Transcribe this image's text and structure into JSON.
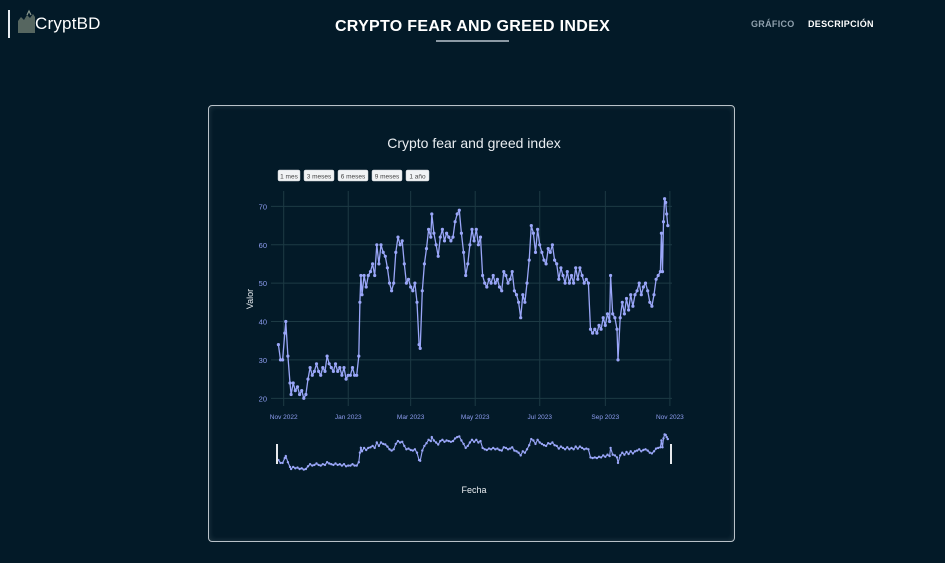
{
  "header": {
    "logo_text": "CryptBD",
    "logo_icon": "bull-bear-icon",
    "title": "CRYPTO FEAR AND GREED INDEX",
    "nav": [
      {
        "label": "GRÁFICO",
        "active": true
      },
      {
        "label": "DESCRIPCIÓN",
        "active": false
      }
    ]
  },
  "chart_data": {
    "type": "line",
    "title": "Crypto fear and greed index",
    "xlabel": "Fecha",
    "ylabel": "Valor",
    "range_buttons": [
      "1 mes",
      "3 meses",
      "6 meses",
      "9 meses",
      "1 año"
    ],
    "x_ticks": [
      "Nov 2022",
      "Jan 2023",
      "Mar 2023",
      "May 2023",
      "Jul 2023",
      "Sep 2023",
      "Nov 2023"
    ],
    "y_ticks": [
      20,
      30,
      40,
      50,
      60,
      70
    ],
    "ylim": [
      18,
      74
    ],
    "xlim": [
      "2022-10-20",
      "2023-11-03"
    ],
    "grid": true,
    "series_color": "#9aa6f8",
    "series": [
      {
        "points": [
          [
            "2022-10-27",
            34
          ],
          [
            "2022-10-29",
            30
          ],
          [
            "2022-10-31",
            30
          ],
          [
            "2022-11-02",
            37
          ],
          [
            "2022-11-03",
            40
          ],
          [
            "2022-11-05",
            31
          ],
          [
            "2022-11-07",
            24
          ],
          [
            "2022-11-08",
            21
          ],
          [
            "2022-11-10",
            24
          ],
          [
            "2022-11-12",
            22
          ],
          [
            "2022-11-14",
            23
          ],
          [
            "2022-11-16",
            21
          ],
          [
            "2022-11-18",
            22
          ],
          [
            "2022-11-20",
            20
          ],
          [
            "2022-11-22",
            21
          ],
          [
            "2022-11-24",
            25
          ],
          [
            "2022-11-26",
            28
          ],
          [
            "2022-11-28",
            26
          ],
          [
            "2022-11-30",
            27
          ],
          [
            "2022-12-02",
            29
          ],
          [
            "2022-12-04",
            27
          ],
          [
            "2022-12-06",
            26
          ],
          [
            "2022-12-08",
            28
          ],
          [
            "2022-12-10",
            27
          ],
          [
            "2022-12-12",
            31
          ],
          [
            "2022-12-14",
            29
          ],
          [
            "2022-12-16",
            28
          ],
          [
            "2022-12-18",
            27
          ],
          [
            "2022-12-20",
            29
          ],
          [
            "2022-12-22",
            27
          ],
          [
            "2022-12-24",
            28
          ],
          [
            "2022-12-26",
            26
          ],
          [
            "2022-12-28",
            28
          ],
          [
            "2022-12-30",
            25
          ],
          [
            "2023-01-01",
            26
          ],
          [
            "2023-01-03",
            26
          ],
          [
            "2023-01-05",
            28
          ],
          [
            "2023-01-07",
            26
          ],
          [
            "2023-01-09",
            26
          ],
          [
            "2023-01-11",
            31
          ],
          [
            "2023-01-12",
            45
          ],
          [
            "2023-01-13",
            52
          ],
          [
            "2023-01-14",
            47
          ],
          [
            "2023-01-16",
            52
          ],
          [
            "2023-01-18",
            49
          ],
          [
            "2023-01-20",
            52
          ],
          [
            "2023-01-22",
            53
          ],
          [
            "2023-01-24",
            55
          ],
          [
            "2023-01-26",
            52
          ],
          [
            "2023-01-28",
            60
          ],
          [
            "2023-01-30",
            55
          ],
          [
            "2023-02-01",
            60
          ],
          [
            "2023-02-03",
            58
          ],
          [
            "2023-02-05",
            57
          ],
          [
            "2023-02-07",
            54
          ],
          [
            "2023-02-09",
            50
          ],
          [
            "2023-02-11",
            48
          ],
          [
            "2023-02-13",
            50
          ],
          [
            "2023-02-15",
            58
          ],
          [
            "2023-02-17",
            62
          ],
          [
            "2023-02-19",
            60
          ],
          [
            "2023-02-21",
            61
          ],
          [
            "2023-02-23",
            55
          ],
          [
            "2023-02-25",
            50
          ],
          [
            "2023-02-27",
            51
          ],
          [
            "2023-03-01",
            49
          ],
          [
            "2023-03-03",
            48
          ],
          [
            "2023-03-05",
            50
          ],
          [
            "2023-03-07",
            45
          ],
          [
            "2023-03-09",
            34
          ],
          [
            "2023-03-10",
            33
          ],
          [
            "2023-03-12",
            48
          ],
          [
            "2023-03-14",
            55
          ],
          [
            "2023-03-16",
            59
          ],
          [
            "2023-03-18",
            64
          ],
          [
            "2023-03-20",
            62
          ],
          [
            "2023-03-21",
            68
          ],
          [
            "2023-03-23",
            63
          ],
          [
            "2023-03-25",
            60
          ],
          [
            "2023-03-27",
            57
          ],
          [
            "2023-03-29",
            62
          ],
          [
            "2023-03-31",
            64
          ],
          [
            "2023-04-02",
            61
          ],
          [
            "2023-04-04",
            63
          ],
          [
            "2023-04-06",
            62
          ],
          [
            "2023-04-08",
            61
          ],
          [
            "2023-04-10",
            62
          ],
          [
            "2023-04-12",
            66
          ],
          [
            "2023-04-14",
            68
          ],
          [
            "2023-04-16",
            69
          ],
          [
            "2023-04-18",
            63
          ],
          [
            "2023-04-20",
            58
          ],
          [
            "2023-04-22",
            52
          ],
          [
            "2023-04-24",
            55
          ],
          [
            "2023-04-26",
            60
          ],
          [
            "2023-04-28",
            64
          ],
          [
            "2023-04-30",
            61
          ],
          [
            "2023-05-02",
            64
          ],
          [
            "2023-05-04",
            60
          ],
          [
            "2023-05-06",
            62
          ],
          [
            "2023-05-08",
            52
          ],
          [
            "2023-05-10",
            50
          ],
          [
            "2023-05-12",
            49
          ],
          [
            "2023-05-14",
            51
          ],
          [
            "2023-05-16",
            50
          ],
          [
            "2023-05-18",
            52
          ],
          [
            "2023-05-20",
            50
          ],
          [
            "2023-05-22",
            51
          ],
          [
            "2023-05-24",
            49
          ],
          [
            "2023-05-26",
            48
          ],
          [
            "2023-05-28",
            53
          ],
          [
            "2023-05-30",
            52
          ],
          [
            "2023-06-01",
            50
          ],
          [
            "2023-06-03",
            51
          ],
          [
            "2023-06-05",
            53
          ],
          [
            "2023-06-07",
            48
          ],
          [
            "2023-06-09",
            47
          ],
          [
            "2023-06-11",
            45
          ],
          [
            "2023-06-13",
            41
          ],
          [
            "2023-06-15",
            47
          ],
          [
            "2023-06-17",
            45
          ],
          [
            "2023-06-19",
            50
          ],
          [
            "2023-06-21",
            56
          ],
          [
            "2023-06-23",
            65
          ],
          [
            "2023-06-25",
            63
          ],
          [
            "2023-06-27",
            58
          ],
          [
            "2023-06-29",
            64
          ],
          [
            "2023-07-01",
            60
          ],
          [
            "2023-07-03",
            58
          ],
          [
            "2023-07-05",
            56
          ],
          [
            "2023-07-07",
            55
          ],
          [
            "2023-07-09",
            59
          ],
          [
            "2023-07-11",
            58
          ],
          [
            "2023-07-13",
            60
          ],
          [
            "2023-07-15",
            56
          ],
          [
            "2023-07-17",
            55
          ],
          [
            "2023-07-19",
            51
          ],
          [
            "2023-07-21",
            54
          ],
          [
            "2023-07-23",
            52
          ],
          [
            "2023-07-25",
            50
          ],
          [
            "2023-07-27",
            53
          ],
          [
            "2023-07-29",
            50
          ],
          [
            "2023-07-31",
            52
          ],
          [
            "2023-08-02",
            50
          ],
          [
            "2023-08-04",
            54
          ],
          [
            "2023-08-06",
            51
          ],
          [
            "2023-08-08",
            54
          ],
          [
            "2023-08-10",
            52
          ],
          [
            "2023-08-12",
            50
          ],
          [
            "2023-08-14",
            51
          ],
          [
            "2023-08-16",
            50
          ],
          [
            "2023-08-18",
            38
          ],
          [
            "2023-08-20",
            37
          ],
          [
            "2023-08-22",
            38
          ],
          [
            "2023-08-24",
            37
          ],
          [
            "2023-08-26",
            39
          ],
          [
            "2023-08-28",
            38
          ],
          [
            "2023-08-30",
            41
          ],
          [
            "2023-09-01",
            39
          ],
          [
            "2023-09-03",
            42
          ],
          [
            "2023-09-05",
            40
          ],
          [
            "2023-09-06",
            52
          ],
          [
            "2023-09-08",
            42
          ],
          [
            "2023-09-10",
            41
          ],
          [
            "2023-09-12",
            38
          ],
          [
            "2023-09-13",
            30
          ],
          [
            "2023-09-15",
            41
          ],
          [
            "2023-09-17",
            45
          ],
          [
            "2023-09-19",
            42
          ],
          [
            "2023-09-21",
            46
          ],
          [
            "2023-09-23",
            43
          ],
          [
            "2023-09-25",
            47
          ],
          [
            "2023-09-27",
            44
          ],
          [
            "2023-09-29",
            47
          ],
          [
            "2023-10-01",
            48
          ],
          [
            "2023-10-03",
            50
          ],
          [
            "2023-10-05",
            47
          ],
          [
            "2023-10-07",
            49
          ],
          [
            "2023-10-09",
            50
          ],
          [
            "2023-10-11",
            48
          ],
          [
            "2023-10-13",
            45
          ],
          [
            "2023-10-15",
            44
          ],
          [
            "2023-10-17",
            47
          ],
          [
            "2023-10-19",
            51
          ],
          [
            "2023-10-21",
            52
          ],
          [
            "2023-10-23",
            53
          ],
          [
            "2023-10-24",
            63
          ],
          [
            "2023-10-25",
            53
          ],
          [
            "2023-10-26",
            66
          ],
          [
            "2023-10-27",
            72
          ],
          [
            "2023-10-28",
            71
          ],
          [
            "2023-10-29",
            68
          ],
          [
            "2023-10-30",
            65
          ]
        ]
      }
    ]
  }
}
